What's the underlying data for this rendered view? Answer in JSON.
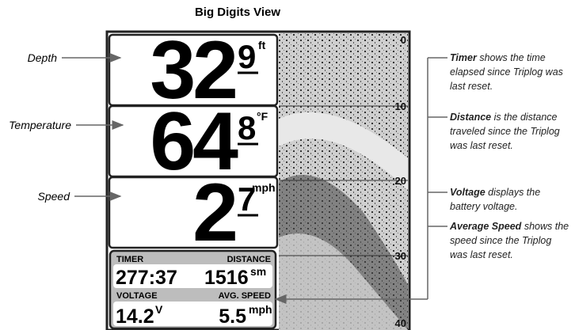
{
  "title": "Big Digits View",
  "callouts": [
    "Depth",
    "Temperature",
    "Speed"
  ],
  "display": {
    "depth": {
      "value": "32",
      "decimal": "9",
      "unit": "ft"
    },
    "temperature": {
      "value": "64",
      "decimal": "8",
      "unit": "°F"
    },
    "speed": {
      "value": "2",
      "decimal": "7",
      "unit": "mph"
    },
    "triplog": {
      "timer_label": "TIMER",
      "distance_label": "DISTANCE",
      "timer": "277:37",
      "distance": "1516",
      "distance_unit": "sm",
      "voltage_label": "VOLTAGE",
      "avg_speed_label": "AVG. SPEED",
      "voltage": "14.2",
      "voltage_unit": "V",
      "avg_speed": "5.5",
      "avg_speed_unit": "mph"
    },
    "depth_scale": [
      "0",
      "10",
      "20",
      "30",
      "40"
    ]
  },
  "notes": [
    {
      "term": "Timer",
      "text": "shows the time elapsed since Triplog was last reset."
    },
    {
      "term": "Distance",
      "text": "is the distance traveled since the Triplog was last reset."
    },
    {
      "term": "Voltage",
      "text": "displays the battery voltage."
    },
    {
      "term": "Average Speed",
      "text": "shows the speed since the Triplog was last reset."
    }
  ]
}
